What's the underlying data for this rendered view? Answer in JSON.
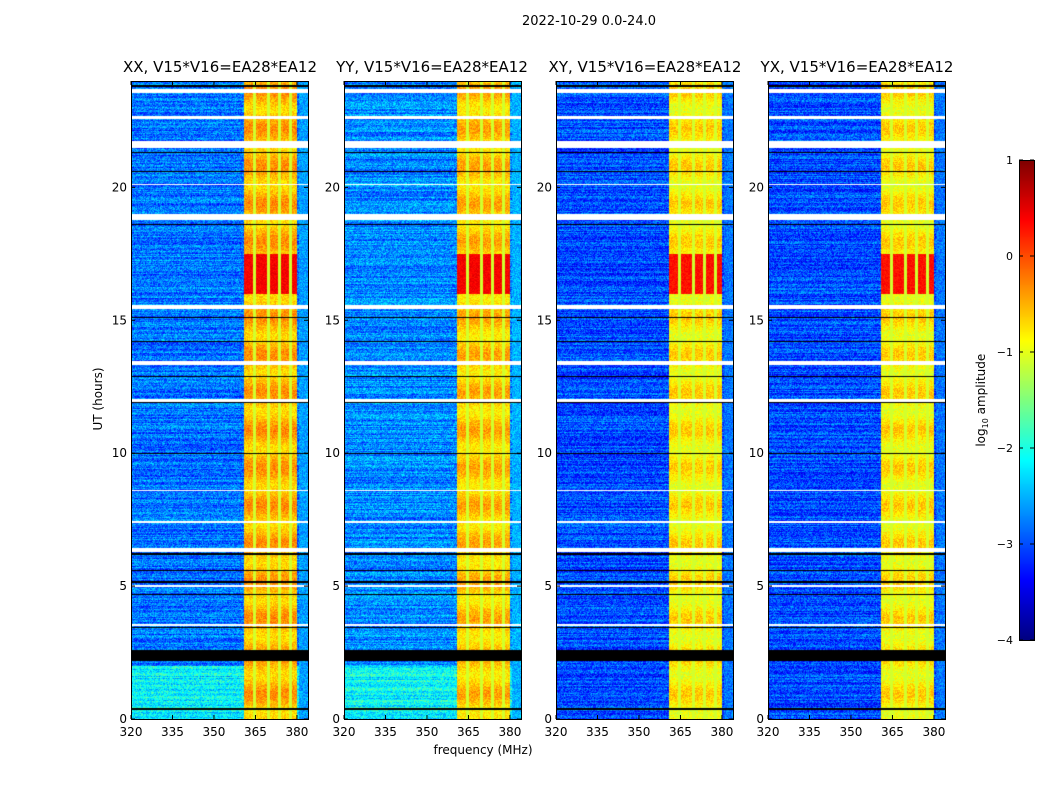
{
  "suptitle": "2022-10-29 0.0-24.0",
  "xlabel": "frequency (MHz)",
  "ylabel": "UT (hours)",
  "colorbar": {
    "label": "log10 amplitude",
    "label_main": "log",
    "label_sub": "10",
    "label_rest": " amplitude",
    "min": -4,
    "max": 1,
    "ticks": [
      1,
      0,
      -1,
      -2,
      -3,
      -4
    ],
    "tick_labels": [
      "1",
      "0",
      "−1",
      "−2",
      "−3",
      "−4"
    ],
    "colormap": "jet"
  },
  "chart_data": [
    {
      "type": "heatmap",
      "title": "XX, V15*V16=EA28*EA12",
      "xlim": [
        320,
        384
      ],
      "ylim": [
        0,
        24
      ],
      "xticks": [
        320,
        335,
        350,
        365,
        380
      ],
      "yticks": [
        0,
        5,
        10,
        15,
        20
      ],
      "background_level": -2.8,
      "rfi_band_mhz": [
        360.5,
        380
      ],
      "rfi_level": -0.5,
      "rfi_peak_hours": [
        16.0,
        17.5
      ],
      "rfi_peak_level": 0.4
    },
    {
      "type": "heatmap",
      "title": "YY, V15*V16=EA28*EA12",
      "xlim": [
        320,
        384
      ],
      "ylim": [
        0,
        24
      ],
      "xticks": [
        320,
        335,
        350,
        365,
        380
      ],
      "yticks": [
        0,
        5,
        10,
        15,
        20
      ],
      "background_level": -2.7,
      "rfi_band_mhz": [
        360.5,
        380
      ],
      "rfi_level": -0.6,
      "rfi_peak_hours": [
        16.0,
        17.5
      ],
      "rfi_peak_level": 0.4
    },
    {
      "type": "heatmap",
      "title": "XY, V15*V16=EA28*EA12",
      "xlim": [
        320,
        384
      ],
      "ylim": [
        0,
        24
      ],
      "xticks": [
        320,
        335,
        350,
        365,
        380
      ],
      "yticks": [
        0,
        5,
        10,
        15,
        20
      ],
      "background_level": -3.0,
      "rfi_band_mhz": [
        360.5,
        380
      ],
      "rfi_level": -0.8,
      "rfi_peak_hours": [
        16.0,
        17.5
      ],
      "rfi_peak_level": 0.3
    },
    {
      "type": "heatmap",
      "title": "YX, V15*V16=EA28*EA12",
      "xlim": [
        320,
        384
      ],
      "ylim": [
        0,
        24
      ],
      "xticks": [
        320,
        335,
        350,
        365,
        380
      ],
      "yticks": [
        0,
        5,
        10,
        15,
        20
      ],
      "background_level": -3.0,
      "rfi_band_mhz": [
        360.5,
        380
      ],
      "rfi_level": -0.8,
      "rfi_peak_hours": [
        16.0,
        17.5
      ],
      "rfi_peak_level": 0.3
    }
  ],
  "flagged_hours_white": [
    [
      23.55,
      23.7
    ],
    [
      22.6,
      22.7
    ],
    [
      21.5,
      21.75
    ],
    [
      20.1,
      20.15
    ],
    [
      18.8,
      19.0
    ],
    [
      15.45,
      15.6
    ],
    [
      13.35,
      13.5
    ],
    [
      11.95,
      12.05
    ],
    [
      8.6,
      8.65
    ],
    [
      7.4,
      7.45
    ],
    [
      6.3,
      6.45
    ],
    [
      5.0,
      5.05
    ],
    [
      3.5,
      3.6
    ]
  ],
  "flagged_hours_black": [
    [
      23.8,
      23.85
    ],
    [
      21.3,
      21.35
    ],
    [
      20.6,
      20.63
    ],
    [
      18.6,
      18.63
    ],
    [
      15.1,
      15.13
    ],
    [
      14.2,
      14.23
    ],
    [
      12.9,
      12.92
    ],
    [
      11.9,
      11.93
    ],
    [
      10.0,
      10.03
    ],
    [
      7.0,
      7.03
    ],
    [
      6.2,
      6.25
    ],
    [
      5.6,
      5.63
    ],
    [
      5.15,
      5.2
    ],
    [
      4.7,
      4.73
    ],
    [
      3.45,
      3.48
    ],
    [
      2.2,
      2.6
    ],
    [
      0.35,
      0.45
    ]
  ]
}
